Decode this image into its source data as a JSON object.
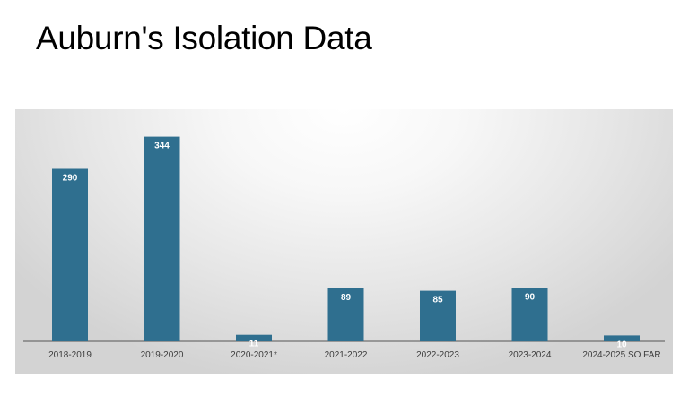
{
  "slide": {
    "title": "Auburn's Isolation Data"
  },
  "chart_data": {
    "type": "bar",
    "categories": [
      "2018-2019",
      "2019-2020",
      "2020-2021*",
      "2021-2022",
      "2022-2023",
      "2023-2024",
      "2024-2025 SO FAR"
    ],
    "values": [
      290,
      344,
      11,
      89,
      85,
      90,
      10
    ],
    "data_labels": [
      "290",
      "344",
      "11",
      "89",
      "85",
      "90",
      "10"
    ],
    "ylim": [
      0,
      360
    ],
    "grid": false,
    "bar_color": "#2f6f8f",
    "label_color": "#ffffff",
    "axis_color": "#555555"
  }
}
